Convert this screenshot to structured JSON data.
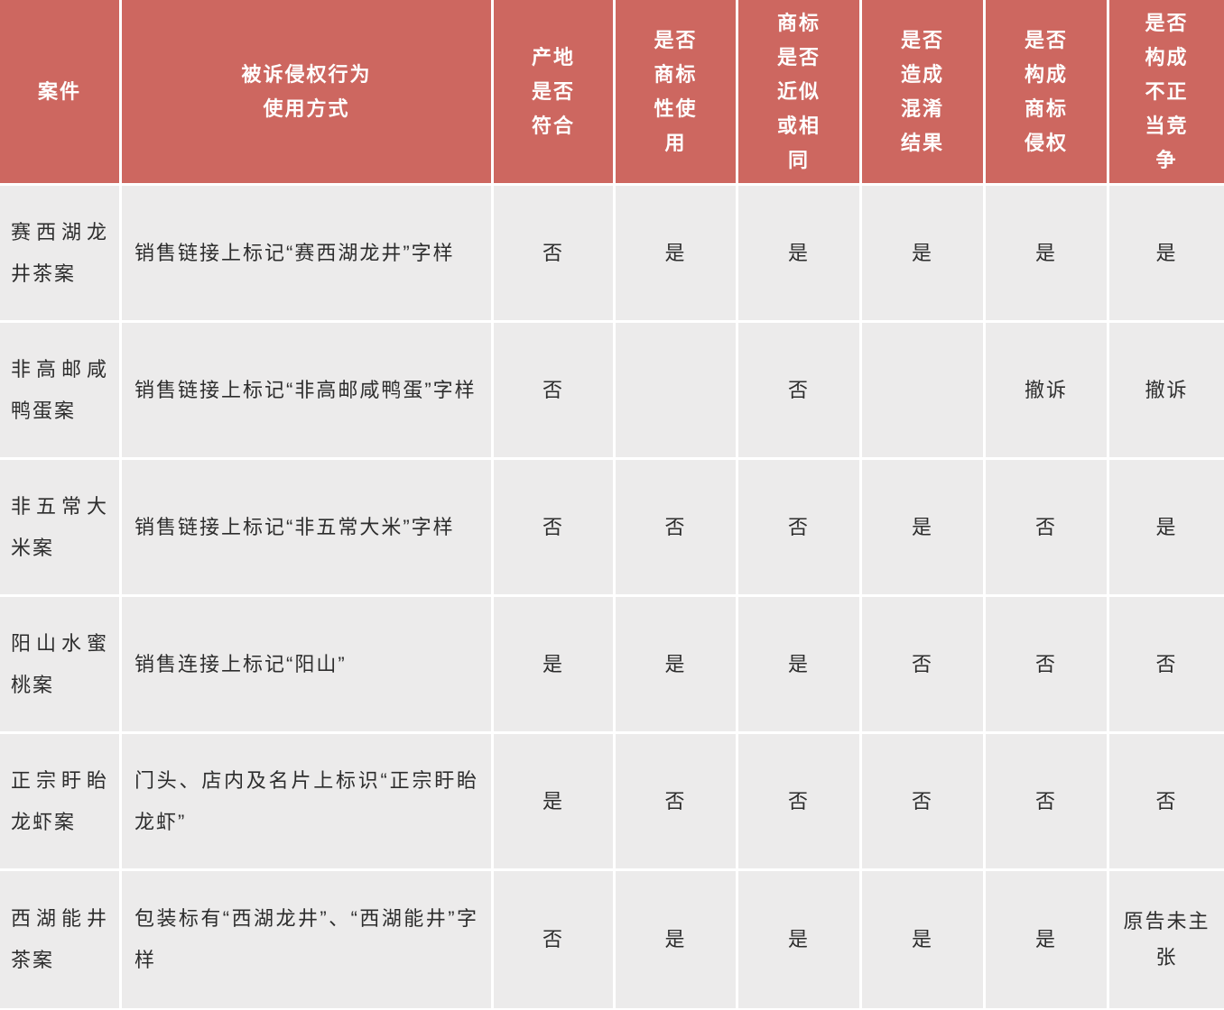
{
  "table": {
    "title_hint": "地理标志商标侵权案件比较表",
    "colors": {
      "header_bg": "#cd6760",
      "header_text": "#ffffff",
      "row_bg": "#ecebeb",
      "divider": "#ffffff",
      "body_text": "#2d2d2d"
    },
    "columns": [
      "案件",
      "被诉侵权行为\n使用方式",
      "产地是否符合",
      "是否商标性使用",
      "商标是否近似或相同",
      "是否造成混淆结果",
      "是否构成商标侵权",
      "是否构成不正当竞争"
    ],
    "rows": [
      {
        "case": "赛西湖龙井茶案",
        "conduct": "销售链接上标记“赛西湖龙井”字样",
        "values": [
          "否",
          "是",
          "是",
          "是",
          "是",
          "是"
        ]
      },
      {
        "case": "非高邮咸鸭蛋案",
        "conduct": "销售链接上标记“非高邮咸鸭蛋”字样",
        "values": [
          "否",
          "",
          "否",
          "",
          "撤诉",
          "撤诉"
        ]
      },
      {
        "case": "非五常大米案",
        "conduct": "销售链接上标记“非五常大米”字样",
        "values": [
          "否",
          "否",
          "否",
          "是",
          "否",
          "是"
        ]
      },
      {
        "case": "阳山水蜜桃案",
        "conduct": "销售连接上标记“阳山”",
        "values": [
          "是",
          "是",
          "是",
          "否",
          "否",
          "否"
        ]
      },
      {
        "case": "正宗盱眙龙虾案",
        "conduct": "门头、店内及名片上标识“正宗盱眙龙虾”",
        "values": [
          "是",
          "否",
          "否",
          "否",
          "否",
          "否"
        ]
      },
      {
        "case": "西湖能井茶案",
        "conduct": "包装标有“西湖龙井”、“西湖能井”字样",
        "values": [
          "否",
          "是",
          "是",
          "是",
          "是",
          "原告未主张"
        ]
      }
    ]
  }
}
